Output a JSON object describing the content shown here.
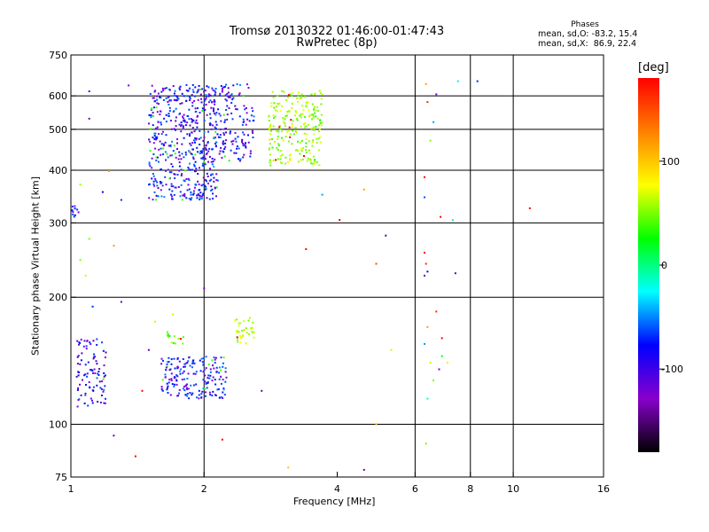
{
  "header": {
    "title_line1": "Tromsø 20130322 01:46:00-01:47:43",
    "title_line2": "RwPretec (8p)",
    "phases_title": "Phases",
    "phases_o": "mean, sd,O: -83.2, 15.4",
    "phases_x": "mean, sd,X:  86.9, 22.4"
  },
  "chart_data": {
    "type": "scatter",
    "xlabel": "Frequency [MHz]",
    "ylabel": "Stationary phase Virtual Height [km]",
    "x_scale": "log",
    "y_scale": "log",
    "xlim": [
      1,
      16
    ],
    "ylim": [
      75,
      750
    ],
    "x_ticks": [
      1,
      2,
      4,
      6,
      8,
      10,
      16
    ],
    "y_ticks": [
      75,
      100,
      200,
      300,
      400,
      500,
      600,
      750
    ],
    "x_gridlines": [
      2,
      6,
      8,
      10
    ],
    "y_gridlines": [
      100,
      200,
      300,
      400,
      500,
      600
    ],
    "grid": true,
    "colorbar": {
      "unit": "[deg]",
      "range": [
        -180,
        180
      ],
      "ticks": [
        100,
        0,
        -100
      ],
      "colors": [
        "#000000",
        "#8800cc",
        "#0000ff",
        "#00ffff",
        "#00ff00",
        "#ffff00",
        "#ff8000",
        "#ff0000"
      ]
    },
    "clusters": [
      {
        "freq": [
          1.5,
          2.15
        ],
        "height": [
          340,
          640
        ],
        "phase": -95,
        "count": 520
      },
      {
        "freq": [
          2.15,
          2.6
        ],
        "height": [
          420,
          640
        ],
        "phase": -100,
        "count": 130
      },
      {
        "freq": [
          2.8,
          3.7
        ],
        "height": [
          410,
          620
        ],
        "phase": 70,
        "count": 230
      },
      {
        "freq": [
          1.03,
          1.2
        ],
        "height": [
          110,
          160
        ],
        "phase": -100,
        "count": 95
      },
      {
        "freq": [
          1.6,
          2.25
        ],
        "height": [
          115,
          145
        ],
        "phase": -90,
        "count": 190
      },
      {
        "freq": [
          1.65,
          1.8
        ],
        "height": [
          155,
          168
        ],
        "phase": 50,
        "count": 14
      },
      {
        "freq": [
          2.35,
          2.6
        ],
        "height": [
          155,
          180
        ],
        "phase": 75,
        "count": 35
      },
      {
        "freq": [
          1.0,
          1.05
        ],
        "height": [
          310,
          330
        ],
        "phase": -100,
        "count": 10
      }
    ],
    "scatter_points": [
      {
        "x": 6.35,
        "y": 640,
        "phase": 120
      },
      {
        "x": 6.4,
        "y": 580,
        "phase": 150
      },
      {
        "x": 6.6,
        "y": 520,
        "phase": -60
      },
      {
        "x": 6.5,
        "y": 470,
        "phase": 60
      },
      {
        "x": 6.3,
        "y": 385,
        "phase": 160
      },
      {
        "x": 6.3,
        "y": 345,
        "phase": -80
      },
      {
        "x": 6.85,
        "y": 310,
        "phase": 160
      },
      {
        "x": 7.3,
        "y": 305,
        "phase": -20
      },
      {
        "x": 6.3,
        "y": 255,
        "phase": 170
      },
      {
        "x": 6.35,
        "y": 240,
        "phase": 150
      },
      {
        "x": 6.4,
        "y": 230,
        "phase": -100
      },
      {
        "x": 6.3,
        "y": 225,
        "phase": -120
      },
      {
        "x": 7.4,
        "y": 228,
        "phase": -130
      },
      {
        "x": 6.7,
        "y": 605,
        "phase": -110
      },
      {
        "x": 7.5,
        "y": 650,
        "phase": -40
      },
      {
        "x": 8.3,
        "y": 650,
        "phase": -90
      },
      {
        "x": 10.9,
        "y": 325,
        "phase": 160
      },
      {
        "x": 5.15,
        "y": 280,
        "phase": -130
      },
      {
        "x": 4.05,
        "y": 305,
        "phase": 170
      },
      {
        "x": 3.4,
        "y": 260,
        "phase": 160
      },
      {
        "x": 4.6,
        "y": 360,
        "phase": 120
      },
      {
        "x": 3.7,
        "y": 350,
        "phase": -60
      },
      {
        "x": 4.9,
        "y": 240,
        "phase": 140
      },
      {
        "x": 4.9,
        "y": 100,
        "phase": 110
      },
      {
        "x": 4.6,
        "y": 78,
        "phase": -120
      },
      {
        "x": 3.1,
        "y": 79,
        "phase": 110
      },
      {
        "x": 6.35,
        "y": 90,
        "phase": 60
      },
      {
        "x": 1.25,
        "y": 94,
        "phase": -120
      },
      {
        "x": 1.4,
        "y": 84,
        "phase": 160
      },
      {
        "x": 2.2,
        "y": 92,
        "phase": 160
      },
      {
        "x": 1.3,
        "y": 195,
        "phase": -120
      },
      {
        "x": 1.5,
        "y": 150,
        "phase": -120
      },
      {
        "x": 1.45,
        "y": 120,
        "phase": 160
      },
      {
        "x": 1.55,
        "y": 175,
        "phase": 80
      },
      {
        "x": 1.7,
        "y": 182,
        "phase": 80
      },
      {
        "x": 1.2,
        "y": 148,
        "phase": -130
      },
      {
        "x": 2.0,
        "y": 210,
        "phase": -110
      },
      {
        "x": 2.7,
        "y": 120,
        "phase": -120
      },
      {
        "x": 1.08,
        "y": 225,
        "phase": 80
      },
      {
        "x": 1.1,
        "y": 275,
        "phase": 60
      },
      {
        "x": 1.25,
        "y": 265,
        "phase": 120
      },
      {
        "x": 1.05,
        "y": 245,
        "phase": 60
      },
      {
        "x": 1.18,
        "y": 355,
        "phase": -100
      },
      {
        "x": 1.3,
        "y": 340,
        "phase": -90
      },
      {
        "x": 1.05,
        "y": 370,
        "phase": 70
      },
      {
        "x": 1.12,
        "y": 190,
        "phase": -90
      },
      {
        "x": 1.1,
        "y": 530,
        "phase": -120
      },
      {
        "x": 1.1,
        "y": 615,
        "phase": -90
      },
      {
        "x": 1.35,
        "y": 635,
        "phase": -110
      },
      {
        "x": 1.22,
        "y": 398,
        "phase": 120
      },
      {
        "x": 5.3,
        "y": 150,
        "phase": 80
      },
      {
        "x": 6.4,
        "y": 170,
        "phase": 120
      },
      {
        "x": 6.7,
        "y": 185,
        "phase": 150
      },
      {
        "x": 6.9,
        "y": 160,
        "phase": 160
      },
      {
        "x": 6.5,
        "y": 140,
        "phase": 80
      },
      {
        "x": 6.6,
        "y": 127,
        "phase": 60
      },
      {
        "x": 6.4,
        "y": 115,
        "phase": -20
      },
      {
        "x": 6.3,
        "y": 155,
        "phase": -60
      },
      {
        "x": 6.9,
        "y": 145,
        "phase": 20
      },
      {
        "x": 7.1,
        "y": 140,
        "phase": 100
      },
      {
        "x": 6.8,
        "y": 135,
        "phase": -110
      }
    ]
  }
}
